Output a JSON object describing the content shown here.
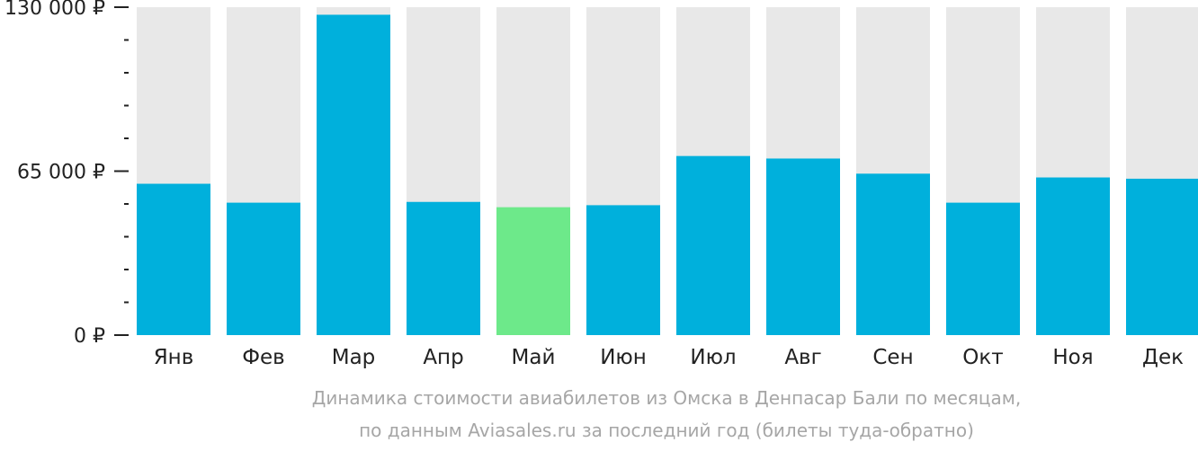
{
  "chart_data": {
    "type": "bar",
    "categories": [
      "Янв",
      "Фев",
      "Мар",
      "Апр",
      "Май",
      "Июн",
      "Июл",
      "Авг",
      "Сен",
      "Окт",
      "Ноя",
      "Дек"
    ],
    "values": [
      60000,
      52500,
      127000,
      52800,
      50700,
      51500,
      71000,
      70000,
      64000,
      52500,
      62500,
      62000
    ],
    "highlight_category": "Май",
    "ylim": [
      0,
      130000
    ],
    "yticks": [
      0,
      65000,
      130000
    ],
    "ytick_labels": [
      "0 ₽",
      "65 000 ₽",
      "130 000 ₽"
    ],
    "minor_ticks_per_interval": 5,
    "colors": {
      "bar": "#00b0dc",
      "highlight": "#6de98a",
      "track": "#e8e8e8",
      "axis": "#222222"
    },
    "caption": [
      "Динамика стоимости авиабилетов из Омска в Денпасар Бали по месяцам,",
      "по данным Aviasales.ru за последний год (билеты туда-обратно)"
    ]
  }
}
